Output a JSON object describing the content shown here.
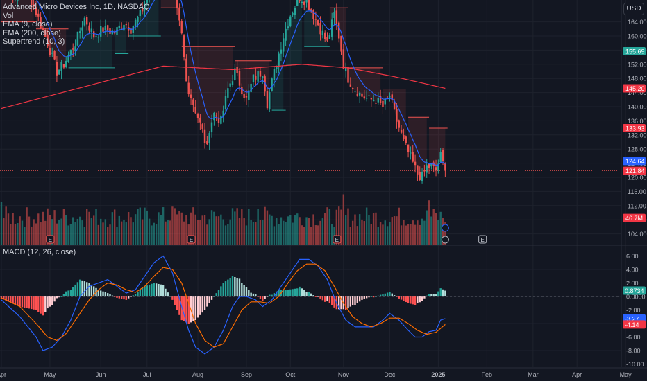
{
  "legend": {
    "symbol": "Advanced Micro Devices Inc, 1D, NASDAQ",
    "vol": "Vol",
    "ema9": "EMA (9, close)",
    "ema200": "EMA (200, close)",
    "supertrend": "Supertrend (10, 3)"
  },
  "currency_button": "USD",
  "macd_legend": "MACD (12, 26, close)",
  "colors": {
    "background": "#131722",
    "up": "#26a69a",
    "down": "#ef5350",
    "ema9": "#2962ff",
    "ema200": "#f23645",
    "macd_line": "#2962ff",
    "signal_line": "#ff6d00",
    "grid": "#1e222d"
  },
  "chart_data": [
    {
      "type": "candlestick",
      "title": "Advanced Micro Devices Inc, 1D, NASDAQ",
      "y_axis_ticks": [
        "164.00",
        "160.00",
        "156.00",
        "152.00",
        "148.00",
        "144.00",
        "140.00",
        "136.00",
        "132.00",
        "128.00",
        "124.00",
        "120.00",
        "116.00",
        "112.00",
        "108.00",
        "104.00"
      ],
      "ylim": [
        100,
        168
      ],
      "price_labels": [
        {
          "value": "155.69",
          "role": "ema9-marker",
          "color": "#26a69a",
          "price": 155.69
        },
        {
          "value": "145.20",
          "role": "ema200",
          "color": "#f23645",
          "price": 145.2
        },
        {
          "value": "133.93",
          "role": "supertrend",
          "color": "#f23645",
          "price": 133.93
        },
        {
          "value": "124.64",
          "role": "ema9",
          "color": "#2962ff",
          "price": 124.64
        },
        {
          "value": "121.84",
          "role": "last-close",
          "color": "#f23645",
          "price": 121.84
        },
        {
          "value": "46.7M",
          "role": "volume",
          "color": "#f23645",
          "price": 108.5
        }
      ],
      "x_ticks": [
        {
          "label": "Apr",
          "t": 0
        },
        {
          "label": "May",
          "t": 21
        },
        {
          "label": "Jun",
          "t": 43
        },
        {
          "label": "Jul",
          "t": 63
        },
        {
          "label": "Aug",
          "t": 85
        },
        {
          "label": "Sep",
          "t": 106
        },
        {
          "label": "Oct",
          "t": 125
        },
        {
          "label": "Nov",
          "t": 148
        },
        {
          "label": "Dec",
          "t": 168
        },
        {
          "label": "2025",
          "t": 189
        },
        {
          "label": "Feb",
          "t": 210
        },
        {
          "label": "Mar",
          "t": 230
        },
        {
          "label": "Apr",
          "t": 249
        },
        {
          "label": "May",
          "t": 270
        }
      ],
      "close_waypoints": [
        [
          0,
          176
        ],
        [
          5,
          171
        ],
        [
          10,
          175
        ],
        [
          16,
          165
        ],
        [
          20,
          158
        ],
        [
          24,
          150
        ],
        [
          27,
          152
        ],
        [
          32,
          158
        ],
        [
          36,
          165
        ],
        [
          40,
          160
        ],
        [
          44,
          162
        ],
        [
          49,
          161
        ],
        [
          53,
          164
        ],
        [
          56,
          162
        ],
        [
          60,
          166
        ],
        [
          64,
          172
        ],
        [
          68,
          177
        ],
        [
          72,
          180
        ],
        [
          75,
          170
        ],
        [
          78,
          160
        ],
        [
          80,
          147
        ],
        [
          83,
          141
        ],
        [
          85,
          137
        ],
        [
          87,
          133
        ],
        [
          89,
          128
        ],
        [
          90,
          134
        ],
        [
          92,
          138
        ],
        [
          95,
          136
        ],
        [
          98,
          145
        ],
        [
          101,
          150
        ],
        [
          104,
          145
        ],
        [
          106,
          142
        ],
        [
          109,
          148
        ],
        [
          113,
          150
        ],
        [
          115,
          141
        ],
        [
          117,
          147
        ],
        [
          120,
          155
        ],
        [
          122,
          160
        ],
        [
          125,
          166
        ],
        [
          129,
          171
        ],
        [
          132,
          170
        ],
        [
          135,
          166
        ],
        [
          138,
          162
        ],
        [
          141,
          158
        ],
        [
          144,
          166
        ],
        [
          146,
          160
        ],
        [
          148,
          152
        ],
        [
          150,
          148
        ],
        [
          153,
          145
        ],
        [
          156,
          143
        ],
        [
          159,
          142
        ],
        [
          162,
          142
        ],
        [
          165,
          140
        ],
        [
          168,
          143
        ],
        [
          170,
          138
        ],
        [
          172,
          134
        ],
        [
          174,
          130
        ],
        [
          176,
          127
        ],
        [
          178,
          124
        ],
        [
          180,
          121
        ],
        [
          182,
          120
        ],
        [
          184,
          123
        ],
        [
          186,
          123
        ],
        [
          188,
          122
        ],
        [
          190,
          126
        ],
        [
          192,
          121.84
        ]
      ],
      "ema200_range": [
        [
          0,
          139.5
        ],
        [
          70,
          151.5
        ],
        [
          100,
          150.5
        ],
        [
          130,
          152
        ],
        [
          150,
          151
        ],
        [
          170,
          148.5
        ],
        [
          192,
          145.2
        ]
      ],
      "supertrend": {
        "segments": [
          {
            "from": 0,
            "to": 14,
            "direction": "down",
            "level": 164
          },
          {
            "from": 15,
            "to": 28,
            "direction": "down",
            "level": 162
          },
          {
            "from": 29,
            "to": 48,
            "direction": "up",
            "level": 151
          },
          {
            "from": 49,
            "to": 54,
            "direction": "up",
            "level": 155
          },
          {
            "from": 55,
            "to": 68,
            "direction": "up",
            "level": 160
          },
          {
            "from": 69,
            "to": 77,
            "direction": "down",
            "level": 168
          },
          {
            "from": 78,
            "to": 100,
            "direction": "down",
            "level": 157
          },
          {
            "from": 101,
            "to": 116,
            "direction": "down",
            "level": 153
          },
          {
            "from": 117,
            "to": 122,
            "direction": "up",
            "level": 139
          },
          {
            "from": 123,
            "to": 130,
            "direction": "up",
            "level": 152
          },
          {
            "from": 131,
            "to": 141,
            "direction": "up",
            "level": 157
          },
          {
            "from": 142,
            "to": 149,
            "direction": "down",
            "level": 168
          },
          {
            "from": 150,
            "to": 164,
            "direction": "down",
            "level": 151
          },
          {
            "from": 165,
            "to": 175,
            "direction": "down",
            "level": 145
          },
          {
            "from": 176,
            "to": 184,
            "direction": "down",
            "level": 137
          },
          {
            "from": 185,
            "to": 192,
            "direction": "down",
            "level": 133.93
          }
        ]
      },
      "earnings_marks": [
        {
          "t": 21,
          "label": "E"
        },
        {
          "t": 82,
          "label": "E"
        },
        {
          "t": 145,
          "label": "E"
        },
        {
          "t": 208,
          "label": "E"
        }
      ],
      "volume_label": "46.7M"
    },
    {
      "type": "macd",
      "title": "MACD (12, 26, close)",
      "y_axis_ticks": [
        "6.00",
        "4.00",
        "2.00",
        "0.0000",
        "-2.00",
        "-4.00",
        "-6.00",
        "-8.00",
        "-10.00"
      ],
      "ylim": [
        -11,
        7.5
      ],
      "value_labels": [
        {
          "value": "0.8734",
          "role": "histogram",
          "color": "#26a69a",
          "v": 0.8734
        },
        {
          "value": "-3.27",
          "role": "macd",
          "color": "#2962ff",
          "v": -3.27
        },
        {
          "value": "-4.14",
          "role": "signal",
          "color": "#f23645",
          "v": -4.14
        }
      ],
      "macd_waypoints": [
        [
          0,
          -0.5
        ],
        [
          8,
          -3
        ],
        [
          15,
          -6
        ],
        [
          18,
          -8
        ],
        [
          22,
          -7.5
        ],
        [
          26,
          -6
        ],
        [
          30,
          -3.5
        ],
        [
          34,
          0
        ],
        [
          38,
          1.5
        ],
        [
          42,
          2
        ],
        [
          46,
          2.5
        ],
        [
          50,
          1.5
        ],
        [
          54,
          0.5
        ],
        [
          58,
          1
        ],
        [
          62,
          3
        ],
        [
          66,
          5
        ],
        [
          70,
          6
        ],
        [
          74,
          3.5
        ],
        [
          78,
          -1.5
        ],
        [
          81,
          -5
        ],
        [
          84,
          -7.5
        ],
        [
          88,
          -8.5
        ],
        [
          92,
          -7.5
        ],
        [
          96,
          -5
        ],
        [
          100,
          -1.5
        ],
        [
          103,
          0
        ],
        [
          106,
          0
        ],
        [
          110,
          -0.5
        ],
        [
          113,
          -1.5
        ],
        [
          117,
          -0.5
        ],
        [
          121,
          1.5
        ],
        [
          125,
          3.5
        ],
        [
          129,
          5.5
        ],
        [
          133,
          5.5
        ],
        [
          137,
          4.5
        ],
        [
          141,
          2.5
        ],
        [
          145,
          -1
        ],
        [
          149,
          -3.5
        ],
        [
          153,
          -4.5
        ],
        [
          157,
          -4.5
        ],
        [
          161,
          -4.5
        ],
        [
          165,
          -3.5
        ],
        [
          168,
          -2.5
        ],
        [
          172,
          -3.5
        ],
        [
          176,
          -5
        ],
        [
          179,
          -6
        ],
        [
          182,
          -6
        ],
        [
          185,
          -5.2
        ],
        [
          188,
          -5
        ],
        [
          190,
          -3.5
        ],
        [
          192,
          -3.27
        ]
      ],
      "signal_waypoints": [
        [
          0,
          -0.2
        ],
        [
          8,
          -1.5
        ],
        [
          15,
          -4
        ],
        [
          20,
          -6
        ],
        [
          24,
          -6.5
        ],
        [
          28,
          -5.5
        ],
        [
          33,
          -3
        ],
        [
          38,
          -0.5
        ],
        [
          42,
          1
        ],
        [
          46,
          2
        ],
        [
          50,
          1.7
        ],
        [
          54,
          1
        ],
        [
          58,
          0.6
        ],
        [
          62,
          1.5
        ],
        [
          66,
          3
        ],
        [
          70,
          4.3
        ],
        [
          74,
          4
        ],
        [
          78,
          2
        ],
        [
          81,
          -1
        ],
        [
          84,
          -4
        ],
        [
          88,
          -6.5
        ],
        [
          92,
          -7.5
        ],
        [
          96,
          -7
        ],
        [
          100,
          -4.5
        ],
        [
          104,
          -2
        ],
        [
          108,
          -0.8
        ],
        [
          112,
          -0.8
        ],
        [
          116,
          -1
        ],
        [
          120,
          0
        ],
        [
          124,
          2
        ],
        [
          128,
          3.8
        ],
        [
          132,
          4.8
        ],
        [
          136,
          4.8
        ],
        [
          140,
          3.8
        ],
        [
          144,
          1.5
        ],
        [
          148,
          -1
        ],
        [
          152,
          -3
        ],
        [
          156,
          -4
        ],
        [
          160,
          -4.5
        ],
        [
          164,
          -4
        ],
        [
          168,
          -3.2
        ],
        [
          172,
          -3.2
        ],
        [
          176,
          -4
        ],
        [
          180,
          -5
        ],
        [
          184,
          -5.6
        ],
        [
          188,
          -5.3
        ],
        [
          192,
          -4.14
        ]
      ]
    }
  ]
}
